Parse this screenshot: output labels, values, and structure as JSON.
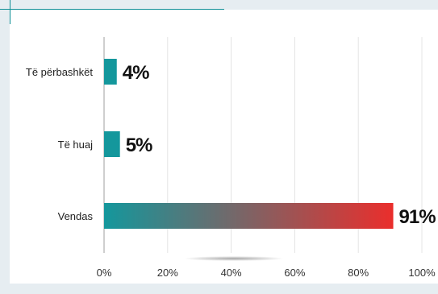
{
  "colors": {
    "accent": "#0f8f96",
    "bar": "#14979c",
    "gradient_start": "#14979c",
    "gradient_end": "#ea2e2c",
    "grid": "#e4e4e4",
    "background": "#e6edf1"
  },
  "chart_data": {
    "type": "bar",
    "orientation": "horizontal",
    "categories": [
      "Të përbashkët",
      "Të huaj",
      "Vendas"
    ],
    "values": [
      4,
      5,
      91
    ],
    "data_labels": [
      "4%",
      "5%",
      "91%"
    ],
    "xlim": [
      0,
      100
    ],
    "x_ticks": [
      0,
      20,
      40,
      60,
      80,
      100
    ],
    "x_tick_labels": [
      "0%",
      "20%",
      "40%",
      "60%",
      "80%",
      "100%"
    ],
    "title": "",
    "xlabel": "",
    "ylabel": "",
    "grid": "vertical"
  }
}
